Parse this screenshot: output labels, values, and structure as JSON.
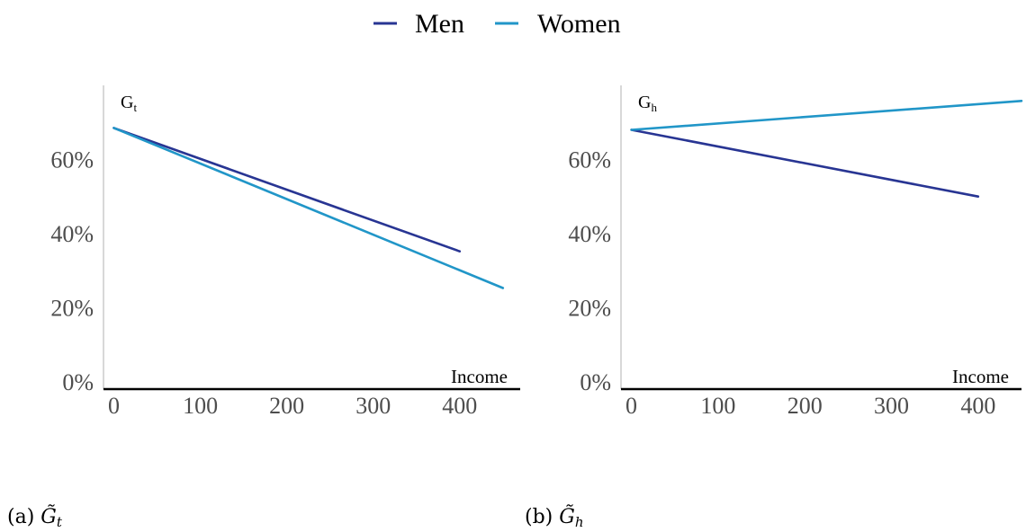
{
  "colors": {
    "men": "#283593",
    "women": "#2196c8",
    "axis": "#000000",
    "yaxis": "#bdbdbd",
    "tick": "#4d4d4d"
  },
  "legend": [
    {
      "name": "Men",
      "color": "#283593"
    },
    {
      "name": "Women",
      "color": "#2196c8"
    }
  ],
  "captions": [
    {
      "prefix": "(a)",
      "symbol": "G̃",
      "subscript": "t"
    },
    {
      "prefix": "(b)",
      "symbol": "G̃",
      "subscript": "h"
    }
  ],
  "chart_data": [
    {
      "type": "line",
      "corner_label": {
        "main": "G",
        "sub": "t"
      },
      "xlabel": "Income",
      "ylabel": "",
      "xlim": [
        -12,
        470
      ],
      "ylim": [
        -2,
        80
      ],
      "xticks": [
        "0",
        "100",
        "200",
        "300",
        "400"
      ],
      "xtick_values": [
        0,
        100,
        200,
        300,
        400
      ],
      "yticks": [
        "0%",
        "20%",
        "40%",
        "60%"
      ],
      "ytick_values": [
        0,
        20,
        40,
        60
      ],
      "grid": false,
      "series": [
        {
          "name": "Men",
          "x": [
            0,
            400
          ],
          "y": [
            68.5,
            35.2
          ]
        },
        {
          "name": "Women",
          "x": [
            0,
            450
          ],
          "y": [
            68.5,
            25.3
          ]
        }
      ]
    },
    {
      "type": "line",
      "corner_label": {
        "main": "G",
        "sub": "h"
      },
      "xlabel": "Income",
      "ylabel": "",
      "xlim": [
        -12,
        450
      ],
      "ylim": [
        -2,
        80
      ],
      "xticks": [
        "0",
        "100",
        "200",
        "300",
        "400"
      ],
      "xtick_values": [
        0,
        100,
        200,
        300,
        400
      ],
      "yticks": [
        "0%",
        "20%",
        "40%",
        "60%"
      ],
      "ytick_values": [
        0,
        20,
        40,
        60
      ],
      "grid": false,
      "series": [
        {
          "name": "Men",
          "x": [
            0,
            400
          ],
          "y": [
            68.0,
            50.0
          ]
        },
        {
          "name": "Women",
          "x": [
            0,
            450
          ],
          "y": [
            68.0,
            75.8
          ]
        }
      ]
    }
  ]
}
